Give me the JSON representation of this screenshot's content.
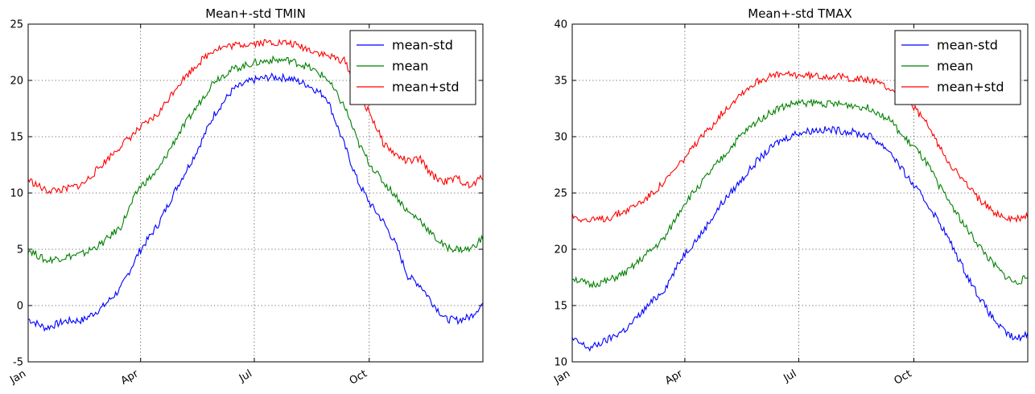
{
  "chart_data": [
    {
      "type": "line",
      "title": "Mean+-std   TMIN",
      "xlabel": "",
      "ylabel": "",
      "x_unit": "day of year",
      "xlim": [
        1,
        365
      ],
      "ylim": [
        -5,
        25
      ],
      "yticks": [
        -5,
        0,
        5,
        10,
        15,
        20,
        25
      ],
      "xticks": [
        {
          "label": "Jan",
          "day": 1
        },
        {
          "label": "Apr",
          "day": 91
        },
        {
          "label": "Jul",
          "day": 182
        },
        {
          "label": "Oct",
          "day": 274
        }
      ],
      "grid": true,
      "legend": "top-right",
      "x": [
        1,
        15,
        30,
        45,
        60,
        75,
        90,
        105,
        120,
        135,
        150,
        165,
        180,
        195,
        210,
        225,
        240,
        255,
        265,
        275,
        285,
        295,
        305,
        315,
        325,
        335,
        345,
        355,
        365
      ],
      "series": [
        {
          "name": "mean-std",
          "color": "#0000ff",
          "values": [
            -1.2,
            -2.0,
            -1.4,
            -1.3,
            -0.2,
            1.5,
            4.8,
            7.2,
            10.5,
            13.5,
            17.0,
            19.2,
            20.0,
            20.3,
            20.2,
            19.6,
            18.5,
            14.0,
            11.0,
            9.0,
            7.5,
            5.5,
            2.6,
            1.8,
            0.2,
            -1.2,
            -1.3,
            -1.0,
            0.2
          ]
        },
        {
          "name": "mean",
          "color": "#008000",
          "values": [
            5.0,
            4.0,
            4.3,
            4.6,
            5.5,
            7.0,
            10.5,
            12.0,
            15.0,
            17.5,
            20.0,
            21.0,
            21.5,
            21.8,
            21.8,
            21.2,
            20.2,
            17.5,
            14.5,
            12.5,
            11.0,
            9.8,
            8.3,
            7.6,
            6.2,
            5.2,
            5.0,
            5.0,
            6.0
          ]
        },
        {
          "name": "mean+std",
          "color": "#ff0000",
          "values": [
            11.2,
            10.2,
            10.3,
            10.8,
            12.5,
            14.2,
            15.7,
            17.0,
            19.5,
            21.3,
            22.8,
            23.1,
            23.3,
            23.4,
            23.3,
            22.8,
            22.2,
            21.7,
            18.8,
            17.0,
            14.5,
            13.4,
            12.8,
            13.0,
            11.5,
            11.0,
            11.3,
            10.5,
            11.5
          ]
        }
      ]
    },
    {
      "type": "line",
      "title": "Mean+-std   TMAX",
      "xlabel": "",
      "ylabel": "",
      "x_unit": "day of year",
      "xlim": [
        1,
        365
      ],
      "ylim": [
        10,
        40
      ],
      "yticks": [
        10,
        15,
        20,
        25,
        30,
        35,
        40
      ],
      "xticks": [
        {
          "label": "Jan",
          "day": 1
        },
        {
          "label": "Apr",
          "day": 91
        },
        {
          "label": "Jul",
          "day": 182
        },
        {
          "label": "Oct",
          "day": 274
        }
      ],
      "grid": true,
      "legend": "top-right",
      "x": [
        1,
        15,
        30,
        45,
        60,
        75,
        90,
        105,
        120,
        135,
        150,
        165,
        180,
        195,
        210,
        225,
        240,
        255,
        265,
        275,
        285,
        295,
        305,
        315,
        325,
        335,
        345,
        355,
        365
      ],
      "series": [
        {
          "name": "mean-std",
          "color": "#0000ff",
          "values": [
            12.0,
            11.2,
            12.0,
            13.0,
            14.8,
            16.5,
            19.5,
            21.5,
            24.0,
            26.0,
            28.0,
            29.5,
            30.3,
            30.6,
            30.6,
            30.4,
            30.0,
            28.7,
            27.0,
            25.5,
            24.0,
            22.3,
            20.2,
            18.0,
            16.0,
            14.2,
            12.8,
            12.0,
            12.5
          ]
        },
        {
          "name": "mean",
          "color": "#008000",
          "values": [
            17.5,
            16.8,
            17.2,
            18.0,
            19.5,
            21.0,
            24.0,
            26.0,
            28.0,
            30.0,
            31.5,
            32.5,
            33.0,
            33.0,
            32.9,
            32.8,
            32.5,
            31.5,
            30.0,
            29.0,
            27.5,
            25.5,
            23.8,
            22.0,
            20.5,
            19.0,
            17.8,
            17.0,
            17.5
          ]
        },
        {
          "name": "mean+std",
          "color": "#ff0000",
          "values": [
            23.0,
            22.5,
            22.8,
            23.5,
            24.5,
            26.0,
            28.0,
            30.0,
            32.0,
            33.8,
            35.0,
            35.5,
            35.5,
            35.4,
            35.4,
            35.2,
            35.0,
            34.3,
            33.5,
            32.5,
            31.0,
            29.0,
            27.3,
            25.9,
            24.6,
            23.5,
            22.9,
            22.6,
            23.0
          ]
        }
      ]
    }
  ]
}
